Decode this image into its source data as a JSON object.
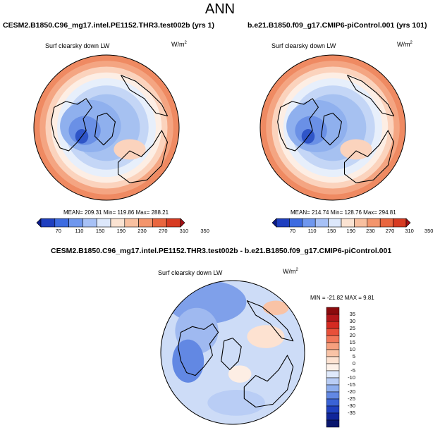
{
  "figure": {
    "title": "ANN",
    "panels": [
      {
        "case": "CESM2.B1850.C96_mg17.intel.PE1152.THR3.test002b (yrs 1)",
        "variable": "Surf clearsky down LW",
        "units_base": "W/m",
        "units_exp": "2",
        "stats": "MEAN= 209.31  Min= 119.86  Max= 288.21"
      },
      {
        "case": "b.e21.B1850.f09_g17.CMIP6-piControl.001 (yrs 101)",
        "variable": "Surf clearsky down LW",
        "units_base": "W/m",
        "units_exp": "2",
        "stats": "MEAN= 214.74  Min= 128.76  Max= 294.81"
      },
      {
        "case": "CESM2.B1850.C96_mg17.intel.PE1152.THR3.test002b - b.e21.B1850.f09_g17.CMIP6-piControl.001",
        "variable": "Surf clearsky down LW",
        "units_base": "W/m",
        "units_exp": "2",
        "stats": "MIN = -21.82  MAX =   9.81"
      }
    ]
  },
  "chart_data": [
    {
      "type": "heatmap",
      "projection": "north-polar-stereographic",
      "title": "Surf clearsky down LW",
      "units": "W/m^2",
      "stats": {
        "mean": 209.31,
        "min": 119.86,
        "max": 288.21
      },
      "colorbar": {
        "orientation": "horizontal",
        "levels": [
          70,
          110,
          150,
          190,
          230,
          270,
          310,
          350
        ],
        "colors": [
          "#0b1a8a",
          "#1f3fbf",
          "#3d6be0",
          "#6f97ee",
          "#a7c1f6",
          "#dde8fb",
          "#fbe3d2",
          "#f8c0a0",
          "#f3956c",
          "#e9663f",
          "#d73b22",
          "#a50f15"
        ]
      }
    },
    {
      "type": "heatmap",
      "projection": "north-polar-stereographic",
      "title": "Surf clearsky down LW",
      "units": "W/m^2",
      "stats": {
        "mean": 214.74,
        "min": 128.76,
        "max": 294.81
      },
      "colorbar": {
        "orientation": "horizontal",
        "levels": [
          70,
          110,
          150,
          190,
          230,
          270,
          310,
          350
        ],
        "colors": [
          "#0b1a8a",
          "#1f3fbf",
          "#3d6be0",
          "#6f97ee",
          "#a7c1f6",
          "#dde8fb",
          "#fbe3d2",
          "#f8c0a0",
          "#f3956c",
          "#e9663f",
          "#d73b22",
          "#a50f15"
        ]
      }
    },
    {
      "type": "heatmap",
      "projection": "north-polar-stereographic",
      "title": "Surf clearsky down LW",
      "units": "W/m^2",
      "stats": {
        "min": -21.82,
        "max": 9.81
      },
      "colorbar": {
        "orientation": "vertical",
        "levels": [
          35,
          30,
          25,
          20,
          15,
          10,
          5,
          0,
          -5,
          -10,
          -15,
          -20,
          -25,
          -30,
          -35
        ],
        "colors": [
          "#8b0a0d",
          "#b2161a",
          "#d42a22",
          "#e8503a",
          "#f2785a",
          "#f6a07e",
          "#f9c3a6",
          "#fde2d1",
          "#fdf1e9",
          "#dfe9fb",
          "#b9cdf5",
          "#8eaeee",
          "#6288e3",
          "#3a63d6",
          "#1f40bf",
          "#10259a",
          "#0a176e"
        ]
      }
    }
  ]
}
